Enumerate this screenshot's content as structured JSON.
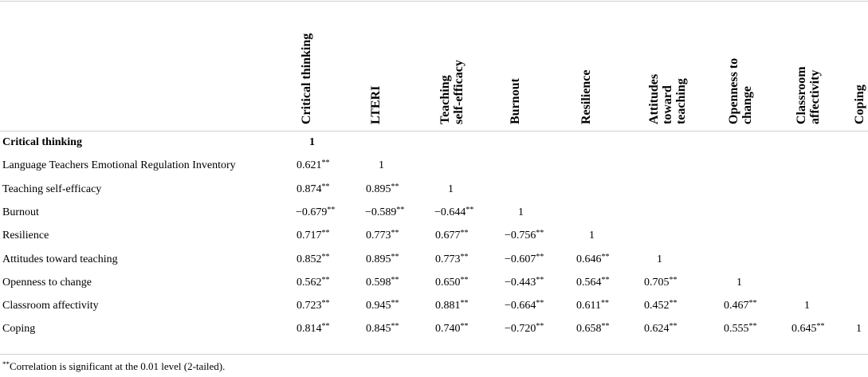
{
  "columns": [
    "Critical thinking",
    "LTERI",
    "Teaching\nself-efficacy",
    "Burnout",
    "Resilience",
    "Attitudes\ntoward\nteaching",
    "Openness to\nchange",
    "Classroom\naffectivity",
    "Coping"
  ],
  "rows": [
    {
      "label": "Critical thinking",
      "bold": true,
      "cells": [
        {
          "v": "1",
          "sig": "",
          "bold": true
        }
      ]
    },
    {
      "label": "Language Teachers Emotional Regulation Inventory",
      "cells": [
        {
          "v": "0.621",
          "sig": "**"
        },
        {
          "v": "1",
          "sig": ""
        }
      ]
    },
    {
      "label": "Teaching self-efficacy",
      "cells": [
        {
          "v": "0.874",
          "sig": "**"
        },
        {
          "v": "0.895",
          "sig": "**"
        },
        {
          "v": "1",
          "sig": ""
        }
      ]
    },
    {
      "label": "Burnout",
      "cells": [
        {
          "v": "−0.679",
          "sig": "**"
        },
        {
          "v": "−0.589",
          "sig": "**"
        },
        {
          "v": "−0.644",
          "sig": "**"
        },
        {
          "v": "1",
          "sig": ""
        }
      ]
    },
    {
      "label": "Resilience",
      "cells": [
        {
          "v": "0.717",
          "sig": "**"
        },
        {
          "v": "0.773",
          "sig": "**"
        },
        {
          "v": "0.677",
          "sig": "**"
        },
        {
          "v": "−0.756",
          "sig": "**"
        },
        {
          "v": "1",
          "sig": ""
        }
      ]
    },
    {
      "label": "Attitudes toward teaching",
      "cells": [
        {
          "v": "0.852",
          "sig": "**"
        },
        {
          "v": "0.895",
          "sig": "**"
        },
        {
          "v": "0.773",
          "sig": "**"
        },
        {
          "v": "−0.607",
          "sig": "**"
        },
        {
          "v": "0.646",
          "sig": "**"
        },
        {
          "v": "1",
          "sig": ""
        }
      ]
    },
    {
      "label": "Openness to change",
      "cells": [
        {
          "v": "0.562",
          "sig": "**"
        },
        {
          "v": "0.598",
          "sig": "**"
        },
        {
          "v": "0.650",
          "sig": "**"
        },
        {
          "v": "−0.443",
          "sig": "**"
        },
        {
          "v": "0.564",
          "sig": "**"
        },
        {
          "v": "0.705",
          "sig": "**"
        },
        {
          "v": "1",
          "sig": ""
        }
      ]
    },
    {
      "label": "Classroom affectivity",
      "cells": [
        {
          "v": "0.723",
          "sig": "**"
        },
        {
          "v": "0.945",
          "sig": "**"
        },
        {
          "v": "0.881",
          "sig": "**"
        },
        {
          "v": "−0.664",
          "sig": "**"
        },
        {
          "v": "0.611",
          "sig": "**"
        },
        {
          "v": "0.452",
          "sig": "**"
        },
        {
          "v": "0.467",
          "sig": "**"
        },
        {
          "v": "1",
          "sig": ""
        }
      ]
    },
    {
      "label": "Coping",
      "cells": [
        {
          "v": "0.814",
          "sig": "**"
        },
        {
          "v": "0.845",
          "sig": "**"
        },
        {
          "v": "0.740",
          "sig": "**"
        },
        {
          "v": "−0.720",
          "sig": "**"
        },
        {
          "v": "0.658",
          "sig": "**"
        },
        {
          "v": "0.624",
          "sig": "**"
        },
        {
          "v": "0.555",
          "sig": "**"
        },
        {
          "v": "0.645",
          "sig": "**"
        },
        {
          "v": "1",
          "sig": ""
        }
      ]
    }
  ],
  "footnote": {
    "sig": "**",
    "text": "Correlation is significant at the 0.01 level (2-tailed)."
  },
  "colors": {
    "rule": "#cfcfcf",
    "text": "#000000"
  }
}
